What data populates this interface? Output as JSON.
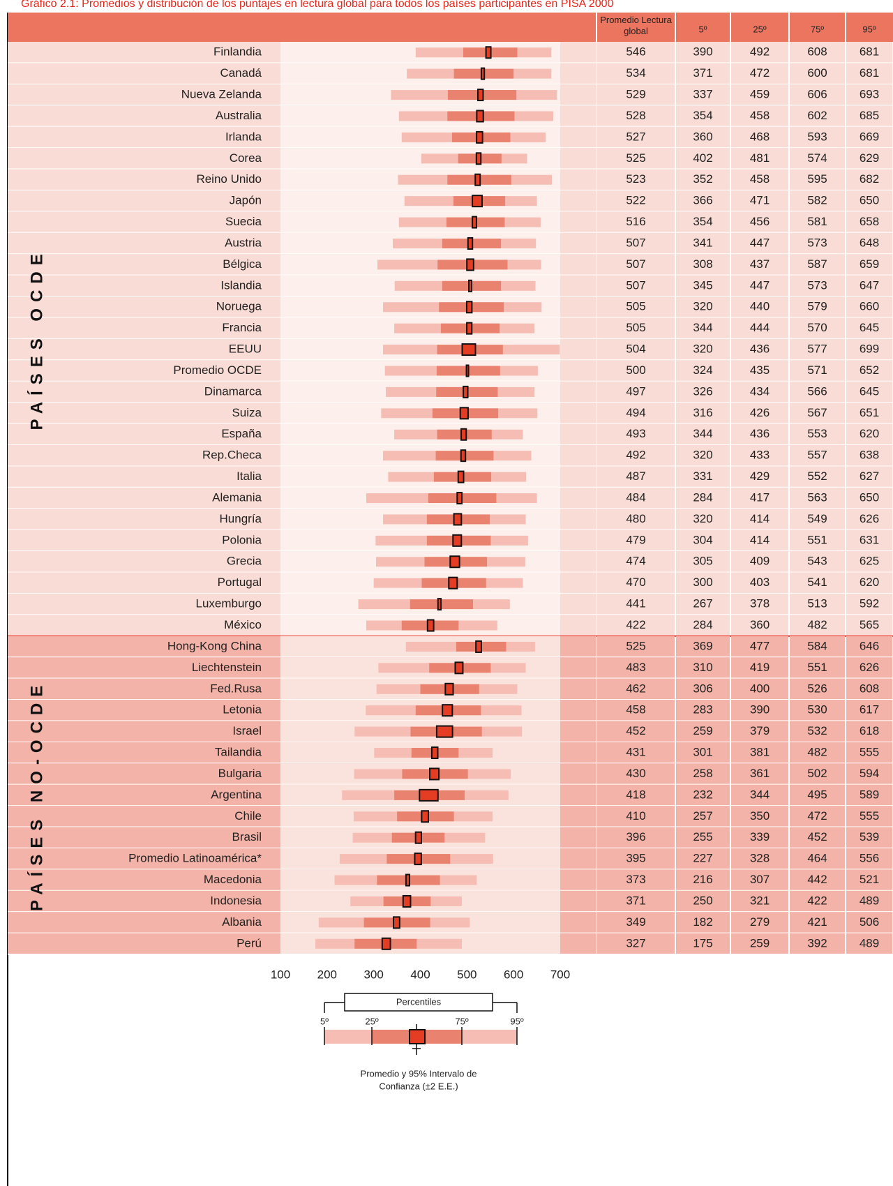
{
  "chart_data": {
    "type": "percentile-range",
    "title": "Gráfico 2.1: Promedios y distribución de los puntajes en lectura global para todos los países participantes en PISA 2000",
    "columns": [
      "Promedio Lectura global",
      "5º",
      "25º",
      "75º",
      "95º"
    ],
    "xlim": [
      100,
      700
    ],
    "xticks": [
      100,
      200,
      300,
      400,
      500,
      600,
      700
    ],
    "colors": {
      "p5_p95": "#f5bdb3",
      "p25_p75": "#e9836f",
      "mean": "#e43d24"
    },
    "groups": [
      {
        "label": "PAÍSES OCDE",
        "categories": [
          "Finlandia",
          "Canadá",
          "Nueva Zelanda",
          "Australia",
          "Irlanda",
          "Corea",
          "Reino Unido",
          "Japón",
          "Suecia",
          "Austria",
          "Bélgica",
          "Islandia",
          "Noruega",
          "Francia",
          "EEUU",
          "Promedio OCDE",
          "Dinamarca",
          "Suiza",
          "España",
          "Rep.Checa",
          "Italia",
          "Alemania",
          "Hungría",
          "Polonia",
          "Grecia",
          "Portugal",
          "Luxemburgo",
          "México"
        ],
        "mean": [
          546,
          534,
          529,
          528,
          527,
          525,
          523,
          522,
          516,
          507,
          507,
          507,
          505,
          505,
          504,
          500,
          497,
          494,
          493,
          492,
          487,
          484,
          480,
          479,
          474,
          470,
          441,
          422
        ],
        "p5": [
          390,
          371,
          337,
          354,
          360,
          402,
          352,
          366,
          354,
          341,
          308,
          345,
          320,
          344,
          320,
          324,
          326,
          316,
          344,
          320,
          331,
          284,
          320,
          304,
          305,
          300,
          267,
          284
        ],
        "p25": [
          492,
          472,
          459,
          458,
          468,
          481,
          458,
          471,
          456,
          447,
          437,
          447,
          440,
          444,
          436,
          435,
          434,
          426,
          436,
          433,
          429,
          417,
          414,
          414,
          409,
          403,
          378,
          360
        ],
        "p75": [
          608,
          600,
          606,
          602,
          593,
          574,
          595,
          582,
          581,
          573,
          587,
          573,
          579,
          570,
          577,
          571,
          566,
          567,
          553,
          557,
          552,
          563,
          549,
          551,
          543,
          541,
          513,
          482
        ],
        "p95": [
          681,
          681,
          693,
          685,
          669,
          629,
          682,
          650,
          658,
          648,
          659,
          647,
          660,
          645,
          699,
          652,
          645,
          651,
          620,
          638,
          627,
          650,
          626,
          631,
          625,
          620,
          592,
          565
        ],
        "se": [
          2.6,
          1.6,
          2.8,
          3.5,
          3.2,
          2.4,
          2.6,
          5.2,
          2.2,
          2.4,
          3.6,
          1.5,
          2.8,
          2.7,
          7.1,
          0.6,
          2.4,
          4.2,
          2.7,
          2.4,
          2.9,
          2.5,
          4.0,
          4.5,
          5.0,
          4.5,
          1.6,
          3.3
        ]
      },
      {
        "label": "PAÍSES NO-OCDE",
        "categories": [
          "Hong-Kong China",
          "Liechtenstein",
          "Fed.Rusa",
          "Letonia",
          "Israel",
          "Tailandia",
          "Bulgaria",
          "Argentina",
          "Chile",
          "Brasil",
          "Promedio Latinoamérica*",
          "Macedonia",
          "Indonesia",
          "Albania",
          "Perú"
        ],
        "mean": [
          525,
          483,
          462,
          458,
          452,
          431,
          430,
          418,
          410,
          396,
          395,
          373,
          371,
          349,
          327
        ],
        "p5": [
          369,
          310,
          306,
          283,
          259,
          301,
          258,
          232,
          257,
          255,
          227,
          216,
          250,
          182,
          175
        ],
        "p25": [
          477,
          419,
          400,
          390,
          379,
          381,
          361,
          344,
          350,
          339,
          328,
          307,
          321,
          279,
          259
        ],
        "p75": [
          584,
          551,
          526,
          530,
          532,
          482,
          502,
          495,
          472,
          452,
          464,
          442,
          422,
          421,
          392
        ],
        "p95": [
          646,
          626,
          608,
          617,
          618,
          555,
          594,
          589,
          555,
          539,
          556,
          521,
          489,
          506,
          489
        ],
        "se": [
          2.9,
          4.1,
          4.2,
          5.3,
          8.5,
          3.2,
          4.9,
          9.9,
          3.6,
          3.1,
          3.5,
          1.9,
          4.0,
          3.3,
          4.4
        ]
      }
    ],
    "legend": {
      "title": "Percentiles",
      "labels": [
        "5º",
        "25º",
        "75º",
        "95º"
      ],
      "mean_label": "Promedio y 95% Intervalo de",
      "mean_label_2": "Confianza (±2 E.E.)"
    }
  }
}
